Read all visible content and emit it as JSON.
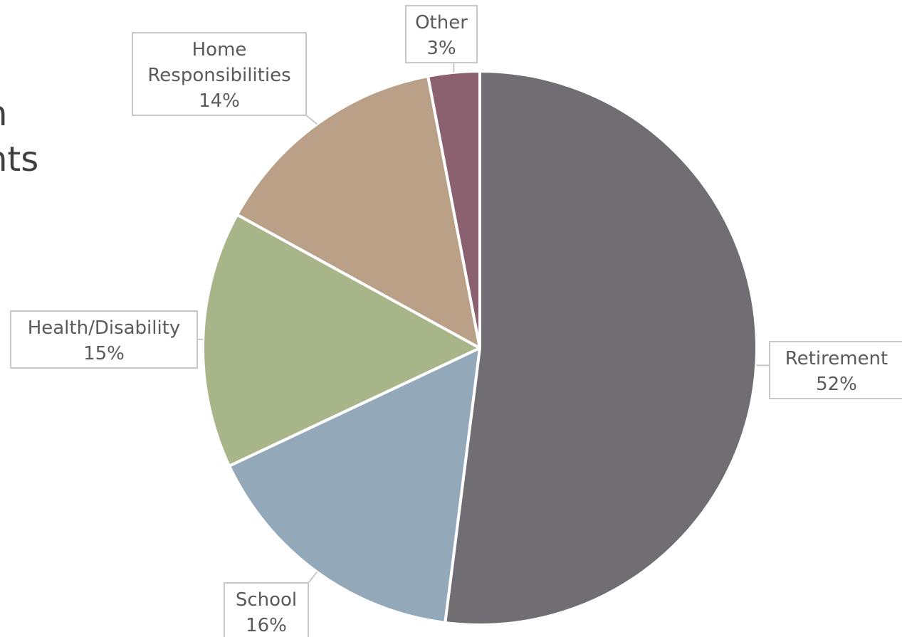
{
  "page": {
    "title_fragment": "",
    "left_fragments": [
      "n",
      "nts"
    ]
  },
  "chart_data": {
    "type": "pie",
    "title": "",
    "start_angle_deg": 0,
    "direction": "clockwise",
    "slices": [
      {
        "label": "Retirement",
        "value": 52,
        "value_label": "52%",
        "color": "#706e73"
      },
      {
        "label": "School",
        "value": 16,
        "value_label": "16%",
        "color": "#93a9b9"
      },
      {
        "label": "Health/Disability",
        "value": 15,
        "value_label": "15%",
        "color": "#a7b589"
      },
      {
        "label": "Home Responsibilities",
        "value": 14,
        "value_label": "14%",
        "color": "#b9a086"
      },
      {
        "label": "Other",
        "value": 3,
        "value_label": "3%",
        "color": "#8b6170"
      }
    ],
    "legend": "none",
    "data_labels": "outside with leader lines"
  }
}
